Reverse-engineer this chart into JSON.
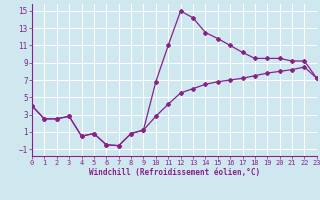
{
  "xlabel": "Windchill (Refroidissement éolien,°C)",
  "bg_color": "#cfe8f0",
  "line_color": "#882288",
  "xlim": [
    0,
    23
  ],
  "ylim": [
    -1.8,
    15.8
  ],
  "xticks": [
    0,
    1,
    2,
    3,
    4,
    5,
    6,
    7,
    8,
    9,
    10,
    11,
    12,
    13,
    14,
    15,
    16,
    17,
    18,
    19,
    20,
    21,
    22,
    23
  ],
  "yticks": [
    -1,
    1,
    3,
    5,
    7,
    9,
    11,
    13,
    15
  ],
  "line1_x": [
    0,
    1,
    2,
    3,
    4,
    5,
    6,
    7,
    8,
    9,
    10,
    11,
    12,
    13,
    14,
    15,
    16,
    17,
    18,
    19,
    20,
    21,
    22,
    23
  ],
  "line1_y": [
    4.0,
    2.5,
    2.5,
    2.8,
    0.5,
    0.8,
    -0.5,
    -0.6,
    0.8,
    1.2,
    6.8,
    11.0,
    15.0,
    14.2,
    12.5,
    11.8,
    11.0,
    10.2,
    9.5,
    9.5,
    9.5,
    9.2,
    9.2,
    7.2
  ],
  "line2_x": [
    0,
    1,
    2,
    3,
    4,
    5,
    6,
    7,
    8,
    9,
    10,
    11,
    12,
    13,
    14,
    15,
    16,
    17,
    18,
    19,
    20,
    21,
    22,
    23
  ],
  "line2_y": [
    4.0,
    2.5,
    2.5,
    2.8,
    0.5,
    0.8,
    -0.5,
    -0.6,
    0.8,
    1.2,
    2.8,
    4.2,
    5.5,
    6.0,
    6.5,
    6.8,
    7.0,
    7.2,
    7.5,
    7.8,
    8.0,
    8.2,
    8.5,
    7.2
  ],
  "xlabel_fontsize": 5.5,
  "tick_fontsize_x": 5.0,
  "tick_fontsize_y": 5.5
}
